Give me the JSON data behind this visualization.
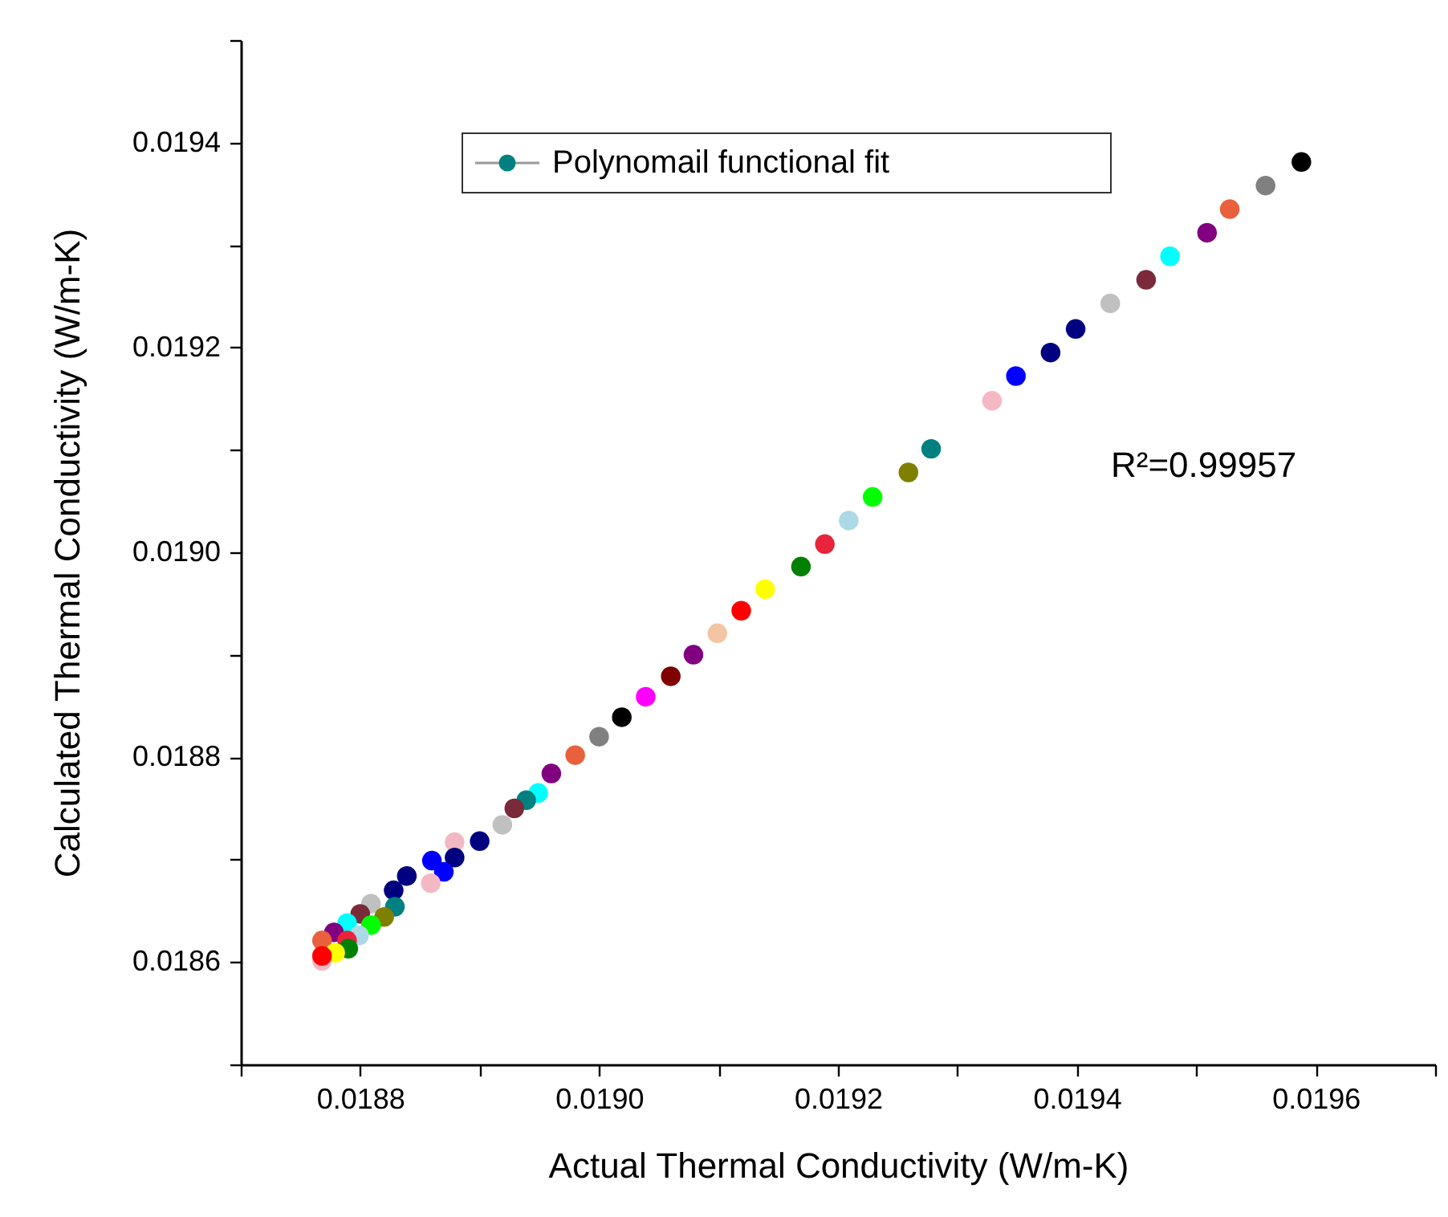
{
  "chart_data": {
    "type": "scatter",
    "xlabel": "Actual Thermal Conductivity (W/m-K)",
    "ylabel": "Calculated Thermal Conductivity (W/m-K)",
    "annotations": [
      "R²=0.99957"
    ],
    "xlim": [
      0.0187,
      0.0197
    ],
    "ylim": [
      0.0185,
      0.0195
    ],
    "xticks": [
      {
        "value": 0.0187,
        "label": null
      },
      0.0188,
      {
        "value": 0.0189,
        "label": null
      },
      {
        "value": 0.019,
        "label": "0.0190"
      },
      {
        "value": 0.0191,
        "label": null
      },
      0.0192,
      {
        "value": 0.0193,
        "label": null
      },
      0.0194,
      {
        "value": 0.0195,
        "label": null
      },
      0.0196,
      {
        "value": 0.0197,
        "label": null
      }
    ],
    "yticks": [
      {
        "value": 0.0185,
        "label": null
      },
      0.0186,
      {
        "value": 0.0187,
        "label": null
      },
      0.0188,
      {
        "value": 0.0189,
        "label": null
      },
      {
        "value": 0.019,
        "label": "0.0190"
      },
      {
        "value": 0.0191,
        "label": null
      },
      0.0192,
      {
        "value": 0.0193,
        "label": null
      },
      0.0194,
      {
        "value": 0.0195,
        "label": null
      }
    ],
    "legend": "top",
    "marker": "circle",
    "series": [
      {
        "name": "Polynomail functional fit",
        "color": "#008080",
        "x": [
          0.019588,
          0.019558,
          0.019528,
          0.019509,
          0.019478,
          0.019458,
          0.019428,
          0.019399,
          0.019378,
          0.019349,
          0.019329,
          0.019278,
          0.019259,
          0.019229,
          0.019209,
          0.019189,
          0.019169,
          0.019139,
          0.019119,
          0.019099,
          0.019079,
          0.01906,
          0.019039,
          0.019019,
          0.019,
          0.01898,
          0.01896,
          0.018949,
          0.018939,
          0.018929,
          0.018919,
          0.0189,
          0.018879,
          0.018879,
          0.01886,
          0.01887,
          0.018859,
          0.018839,
          0.018828,
          0.018809,
          0.018829,
          0.01882,
          0.0188,
          0.018809,
          0.018789,
          0.018799,
          0.018778,
          0.018789,
          0.01879,
          0.018768,
          0.018779,
          0.018768,
          0.018768
        ],
        "values": [
          0.019381,
          0.019358,
          0.019335,
          0.019312,
          0.019289,
          0.019266,
          0.019243,
          0.019218,
          0.019195,
          0.019172,
          0.019148,
          0.019101,
          0.019078,
          0.019054,
          0.019031,
          0.019008,
          0.018986,
          0.018964,
          0.018943,
          0.018921,
          0.0189,
          0.018879,
          0.018859,
          0.018839,
          0.01882,
          0.018802,
          0.018784,
          0.018765,
          0.018758,
          0.01875,
          0.018734,
          0.018718,
          0.018717,
          0.018702,
          0.018699,
          0.018688,
          0.018677,
          0.018684,
          0.01867,
          0.018657,
          0.018654,
          0.018644,
          0.018647,
          0.018636,
          0.018638,
          0.018626,
          0.018629,
          0.018621,
          0.018613,
          0.018621,
          0.018609,
          0.018601,
          0.018606
        ],
        "colors": [
          "#000000",
          "#808080",
          "#e8603c",
          "#800080",
          "#00ffff",
          "#7b2a3a",
          "#c0c0c0",
          "#000080",
          "#000080",
          "#0000ff",
          "#f4b8c4",
          "#008080",
          "#808000",
          "#00ff00",
          "#add8e6",
          "#e8243c",
          "#008000",
          "#ffff00",
          "#ff0000",
          "#f5c5a3",
          "#800080",
          "#800000",
          "#ff00ff",
          "#000000",
          "#808080",
          "#e8603c",
          "#800080",
          "#00ffff",
          "#008080",
          "#7b2a3a",
          "#c0c0c0",
          "#000080",
          "#f4b8c4",
          "#000080",
          "#0000ff",
          "#0000ff",
          "#f4b8c4",
          "#000080",
          "#000080",
          "#c0c0c0",
          "#008080",
          "#808000",
          "#7b2a3a",
          "#00ff00",
          "#00ffff",
          "#add8e6",
          "#800080",
          "#e8243c",
          "#008000",
          "#e8603c",
          "#ffff00",
          "#f4b8c4",
          "#ff0000"
        ]
      }
    ]
  }
}
